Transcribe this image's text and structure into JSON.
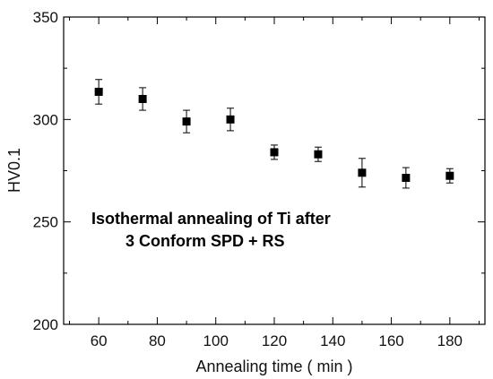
{
  "chart_data": {
    "type": "scatter",
    "title": "",
    "xlabel": "Annealing time ( min )",
    "ylabel": "HV0.1",
    "xlim": [
      48,
      192
    ],
    "ylim": [
      200,
      350
    ],
    "x_ticks": [
      60,
      80,
      100,
      120,
      140,
      160,
      180
    ],
    "x_tick_labels": [
      "60",
      "80",
      "100",
      "120",
      "140",
      "160",
      "180"
    ],
    "y_ticks": [
      200,
      250,
      300,
      350
    ],
    "y_tick_labels": [
      "200",
      "250",
      "300",
      "350"
    ],
    "grid": false,
    "legend": "none",
    "annotation_lines": [
      "Isothermal annealing of Ti after",
      "3 Conform SPD + RS"
    ],
    "series": [
      {
        "marker": "square",
        "color": "#000000",
        "x": [
          60,
          75,
          90,
          105,
          120,
          135,
          150,
          165,
          180
        ],
        "y": [
          313.5,
          310,
          299,
          300,
          284,
          283,
          274,
          271.5,
          272.5
        ],
        "error": [
          6,
          5.5,
          5.5,
          5.5,
          3.5,
          3.5,
          7,
          5,
          3.5
        ]
      }
    ]
  }
}
